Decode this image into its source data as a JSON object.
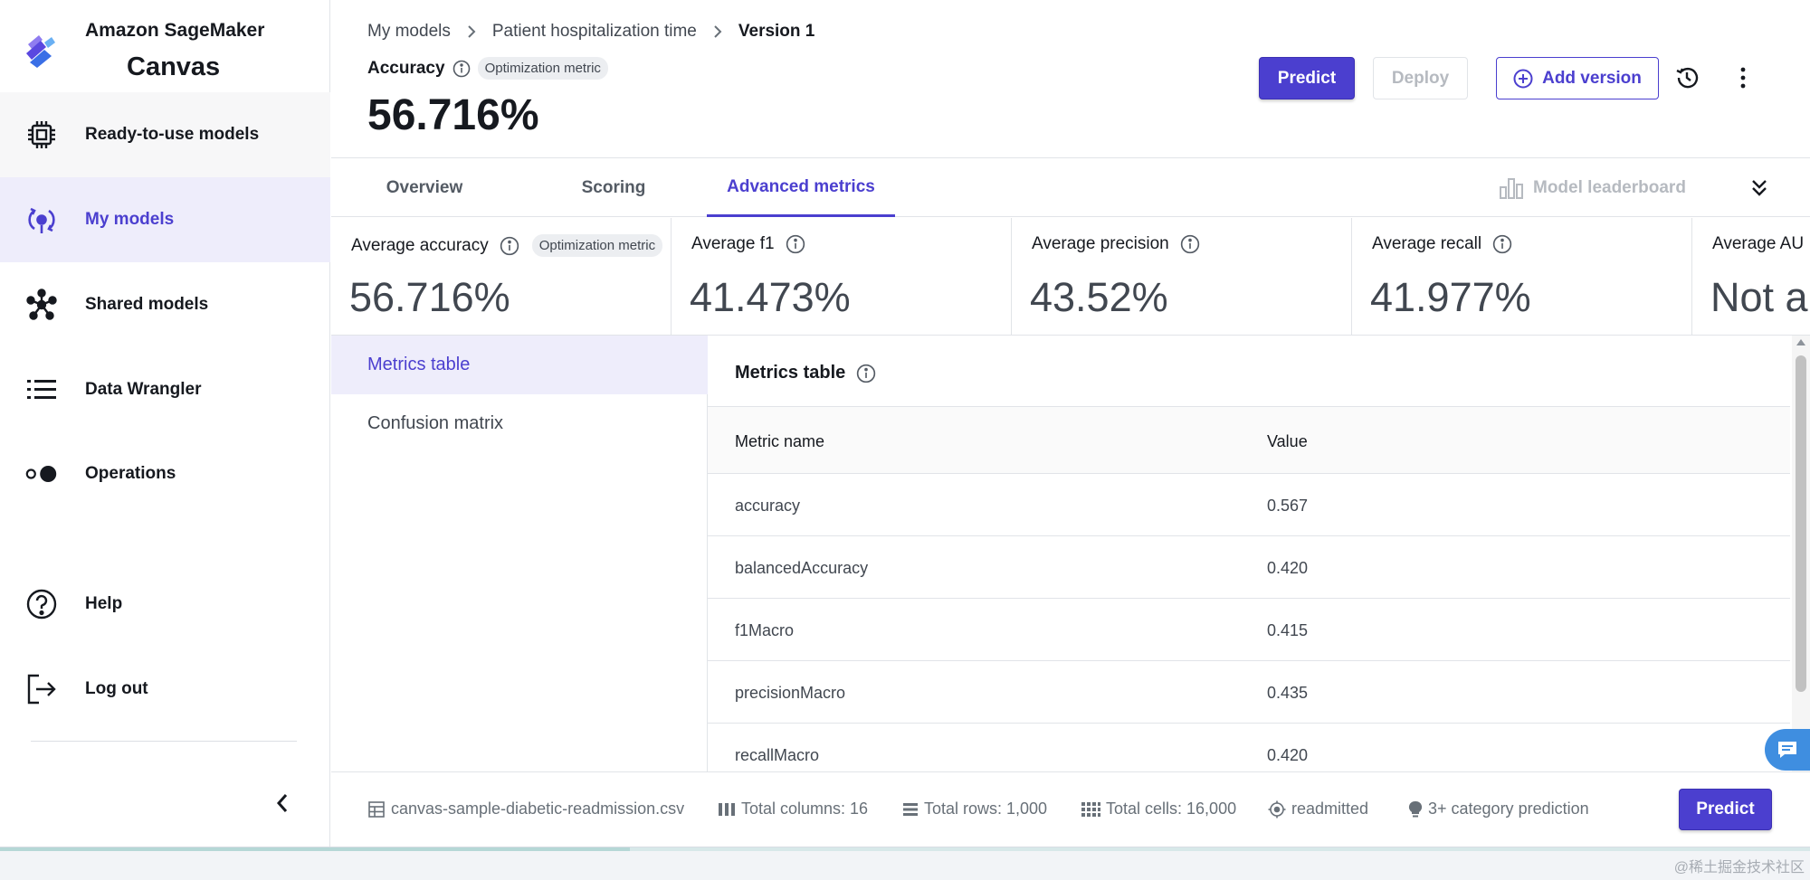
{
  "app": {
    "brand_line1": "Amazon SageMaker",
    "brand_line2": "Canvas"
  },
  "sidebar": {
    "items": [
      {
        "label": "Ready-to-use models",
        "icon": "chip-icon"
      },
      {
        "label": "My models",
        "icon": "models-icon"
      },
      {
        "label": "Shared models",
        "icon": "share-icon"
      },
      {
        "label": "Data Wrangler",
        "icon": "list-icon"
      },
      {
        "label": "Operations",
        "icon": "operations-icon"
      },
      {
        "label": "Help",
        "icon": "help-icon"
      },
      {
        "label": "Log out",
        "icon": "logout-icon"
      }
    ]
  },
  "header": {
    "breadcrumb": [
      "My models",
      "Patient hospitalization time",
      "Version 1"
    ],
    "accuracy_label": "Accuracy",
    "optimization_badge": "Optimization metric",
    "accuracy_value": "56.716%",
    "predict_label": "Predict",
    "deploy_label": "Deploy",
    "add_version_label": "Add version"
  },
  "tabs": {
    "items": [
      "Overview",
      "Scoring",
      "Advanced metrics"
    ],
    "active": "Advanced metrics",
    "leaderboard_label": "Model leaderboard"
  },
  "metrics": {
    "cards": [
      {
        "title": "Average accuracy",
        "value": "56.716%",
        "badge": "Optimization metric"
      },
      {
        "title": "Average f1",
        "value": "41.473%"
      },
      {
        "title": "Average precision",
        "value": "43.52%"
      },
      {
        "title": "Average recall",
        "value": "41.977%"
      },
      {
        "title": "Average AU",
        "value": "Not a"
      }
    ]
  },
  "subnav": {
    "items": [
      "Metrics table",
      "Confusion matrix"
    ],
    "active": "Metrics table"
  },
  "table": {
    "title": "Metrics table",
    "columns": [
      "Metric name",
      "Value"
    ],
    "rows": [
      {
        "name": "accuracy",
        "value": "0.567"
      },
      {
        "name": "balancedAccuracy",
        "value": "0.420"
      },
      {
        "name": "f1Macro",
        "value": "0.415"
      },
      {
        "name": "precisionMacro",
        "value": "0.435"
      },
      {
        "name": "recallMacro",
        "value": "0.420"
      }
    ]
  },
  "footer": {
    "dataset": "canvas-sample-diabetic-readmission.csv",
    "total_columns": "Total columns: 16",
    "total_rows": "Total rows: 1,000",
    "total_cells": "Total cells: 16,000",
    "target": "readmitted",
    "problem_type": "3+ category prediction",
    "predict_label": "Predict"
  },
  "watermark": "@稀土掘金技术社区",
  "colors": {
    "accent": "#4b3fcf",
    "active_bg": "#eeedfb",
    "chat_button": "#3f8ee0"
  },
  "progress": {
    "fraction": 0.348
  }
}
